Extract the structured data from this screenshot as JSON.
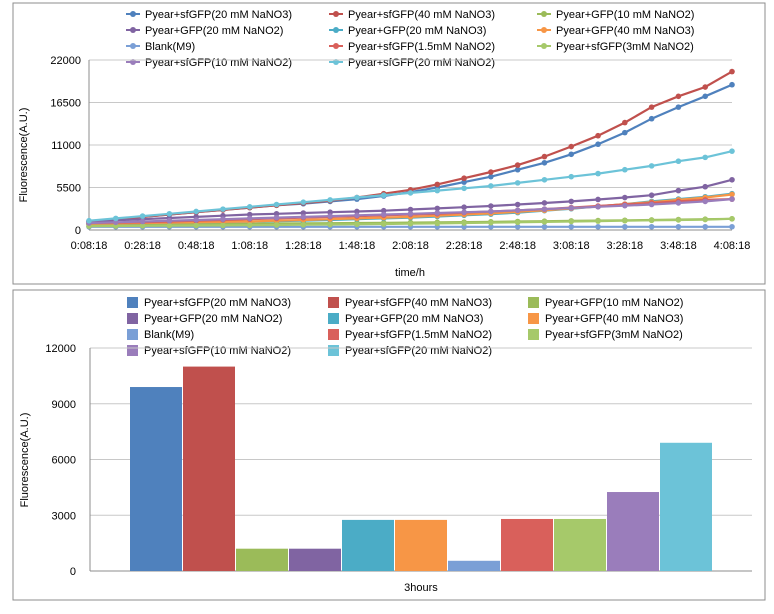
{
  "chart_data": [
    {
      "type": "line",
      "title": "",
      "xlabel": "time/h",
      "ylabel": "Fluorescence(A.U.)",
      "ylim": [
        0,
        22000
      ],
      "ytick_labels": [
        "0",
        "5500",
        "11000",
        "16500",
        "22000"
      ],
      "x": [
        "0:08:18",
        "0:18:18",
        "0:28:18",
        "0:38:18",
        "0:48:18",
        "0:58:18",
        "1:08:18",
        "1:18:18",
        "1:28:18",
        "1:38:18",
        "1:48:18",
        "1:58:18",
        "2:08:18",
        "2:18:18",
        "2:28:18",
        "2:38:18",
        "2:48:18",
        "2:58:18",
        "3:08:18",
        "3:18:18",
        "3:28:18",
        "3:38:18",
        "3:48:18",
        "3:58:18",
        "4:08:18"
      ],
      "xtick_labels": [
        "0:08:18",
        "0:28:18",
        "0:48:18",
        "1:08:18",
        "1:28:18",
        "1:48:18",
        "2:08:18",
        "2:28:18",
        "2:48:18",
        "3:08:18",
        "3:28:18",
        "3:48:18",
        "4:08:18"
      ],
      "legend_position": "top",
      "grid": true,
      "series": [
        {
          "name": "Pyear+sfGFP(20 mM NaNO3)",
          "color": "#4f81bd",
          "values": [
            1100,
            1400,
            1700,
            2000,
            2300,
            2600,
            2900,
            3200,
            3400,
            3700,
            4000,
            4400,
            4900,
            5500,
            6200,
            6900,
            7800,
            8700,
            9800,
            11100,
            12600,
            14400,
            15900,
            17300,
            18800
          ]
        },
        {
          "name": "Pyear+sfGFP(40 mM NaNO3)",
          "color": "#c0504d",
          "values": [
            1100,
            1400,
            1700,
            2000,
            2300,
            2600,
            2900,
            3200,
            3500,
            3800,
            4200,
            4700,
            5200,
            5900,
            6700,
            7500,
            8400,
            9500,
            10800,
            12200,
            13900,
            15900,
            17300,
            18500,
            20500
          ]
        },
        {
          "name": "Pyear+GFP(10 mM NaNO2)",
          "color": "#9bbb59",
          "values": [
            700,
            720,
            740,
            760,
            780,
            800,
            820,
            840,
            860,
            880,
            900,
            930,
            960,
            990,
            1020,
            1060,
            1100,
            1140,
            1180,
            1220,
            1260,
            1300,
            1350,
            1400,
            1450
          ]
        },
        {
          "name": "Pyear+GFP(20 mM NaNO2)",
          "color": "#8064a2",
          "values": [
            1100,
            1250,
            1400,
            1550,
            1700,
            1850,
            2000,
            2100,
            2200,
            2300,
            2400,
            2500,
            2650,
            2800,
            2950,
            3100,
            3300,
            3500,
            3700,
            3950,
            4200,
            4500,
            5100,
            5600,
            6500
          ]
        },
        {
          "name": "Pyear+GFP(20 mM NaNO3)",
          "color": "#4bacc6",
          "values": [
            800,
            850,
            900,
            950,
            1000,
            1050,
            1100,
            1150,
            1200,
            1300,
            1400,
            1500,
            1600,
            1750,
            1900,
            2050,
            2250,
            2500,
            2750,
            3050,
            3350,
            3700,
            4000,
            4300,
            4700
          ]
        },
        {
          "name": "Pyear+GFP(40 mM NaNO3)",
          "color": "#f79646",
          "values": [
            800,
            850,
            900,
            950,
            1000,
            1050,
            1100,
            1200,
            1300,
            1400,
            1500,
            1600,
            1700,
            1850,
            2000,
            2150,
            2350,
            2550,
            2800,
            3050,
            3350,
            3600,
            3900,
            4200,
            4600
          ]
        },
        {
          "name": "Blank(M9)",
          "color": "#7a9fd6",
          "values": [
            420,
            420,
            420,
            420,
            420,
            420,
            420,
            420,
            420,
            420,
            420,
            420,
            420,
            420,
            420,
            420,
            420,
            420,
            420,
            420,
            420,
            420,
            420,
            420,
            420
          ]
        },
        {
          "name": "Pyear+sfGFP(1.5mM NaNO2)",
          "color": "#d9605b",
          "values": [
            900,
            950,
            1000,
            1100,
            1200,
            1300,
            1400,
            1500,
            1600,
            1700,
            1800,
            1900,
            2000,
            2100,
            2250,
            2400,
            2550,
            2700,
            2900,
            3100,
            3300,
            3500,
            3700,
            3900,
            4000
          ]
        },
        {
          "name": "Pyear+sfGFP(3mM NaNO2)",
          "color": "#a6c96a",
          "values": [
            500,
            520,
            540,
            560,
            580,
            600,
            620,
            650,
            680,
            710,
            740,
            780,
            820,
            860,
            900,
            950,
            1000,
            1050,
            1100,
            1150,
            1200,
            1250,
            1300,
            1350,
            1450
          ]
        },
        {
          "name": "Pyear+sfGFP(10 mM NaNO2)",
          "color": "#9a7dbb",
          "values": [
            900,
            1000,
            1100,
            1200,
            1300,
            1400,
            1500,
            1600,
            1700,
            1800,
            1900,
            2000,
            2100,
            2200,
            2300,
            2400,
            2550,
            2700,
            2850,
            3000,
            3150,
            3300,
            3500,
            3700,
            4000
          ]
        },
        {
          "name": "Pyear+sfGFP(20 mM NaNO2)",
          "color": "#6cc3d8",
          "values": [
            1200,
            1500,
            1800,
            2100,
            2400,
            2700,
            3000,
            3300,
            3600,
            3900,
            4200,
            4500,
            4800,
            5100,
            5400,
            5700,
            6100,
            6500,
            6900,
            7300,
            7800,
            8300,
            8900,
            9400,
            10200
          ]
        }
      ]
    },
    {
      "type": "bar",
      "title": "",
      "xlabel": "",
      "ylabel": "Fluorescence(A.U.)",
      "ylim": [
        0,
        12000
      ],
      "ytick_labels": [
        "0",
        "3000",
        "6000",
        "9000",
        "12000"
      ],
      "categories": [
        "3hours"
      ],
      "legend_position": "top",
      "grid": true,
      "series": [
        {
          "name": "Pyear+sfGFP(20 mM NaNO3)",
          "color": "#4f81bd",
          "values": [
            9900
          ]
        },
        {
          "name": "Pyear+sfGFP(40 mM NaNO3)",
          "color": "#c0504d",
          "values": [
            11000
          ]
        },
        {
          "name": "Pyear+GFP(10 mM NaNO2)",
          "color": "#9bbb59",
          "values": [
            1200
          ]
        },
        {
          "name": "Pyear+GFP(20 mM NaNO2)",
          "color": "#8064a2",
          "values": [
            1200
          ]
        },
        {
          "name": "Pyear+GFP(20 mM NaNO3)",
          "color": "#4bacc6",
          "values": [
            2750
          ]
        },
        {
          "name": "Pyear+GFP(40 mM NaNO3)",
          "color": "#f79646",
          "values": [
            2750
          ]
        },
        {
          "name": "Blank(M9)",
          "color": "#7a9fd6",
          "values": [
            550
          ]
        },
        {
          "name": "Pyear+sfGFP(1.5mM NaNO2)",
          "color": "#d9605b",
          "values": [
            2800
          ]
        },
        {
          "name": "Pyear+sfGFP(3mM NaNO2)",
          "color": "#a6c96a",
          "values": [
            2800
          ]
        },
        {
          "name": "Pyear+sfGFP(10 mM NaNO2)",
          "color": "#9a7dbb",
          "values": [
            4250
          ]
        },
        {
          "name": "Pyear+sfGFP(20 mM NaNO2)",
          "color": "#6cc3d8",
          "values": [
            6900
          ]
        }
      ]
    }
  ]
}
